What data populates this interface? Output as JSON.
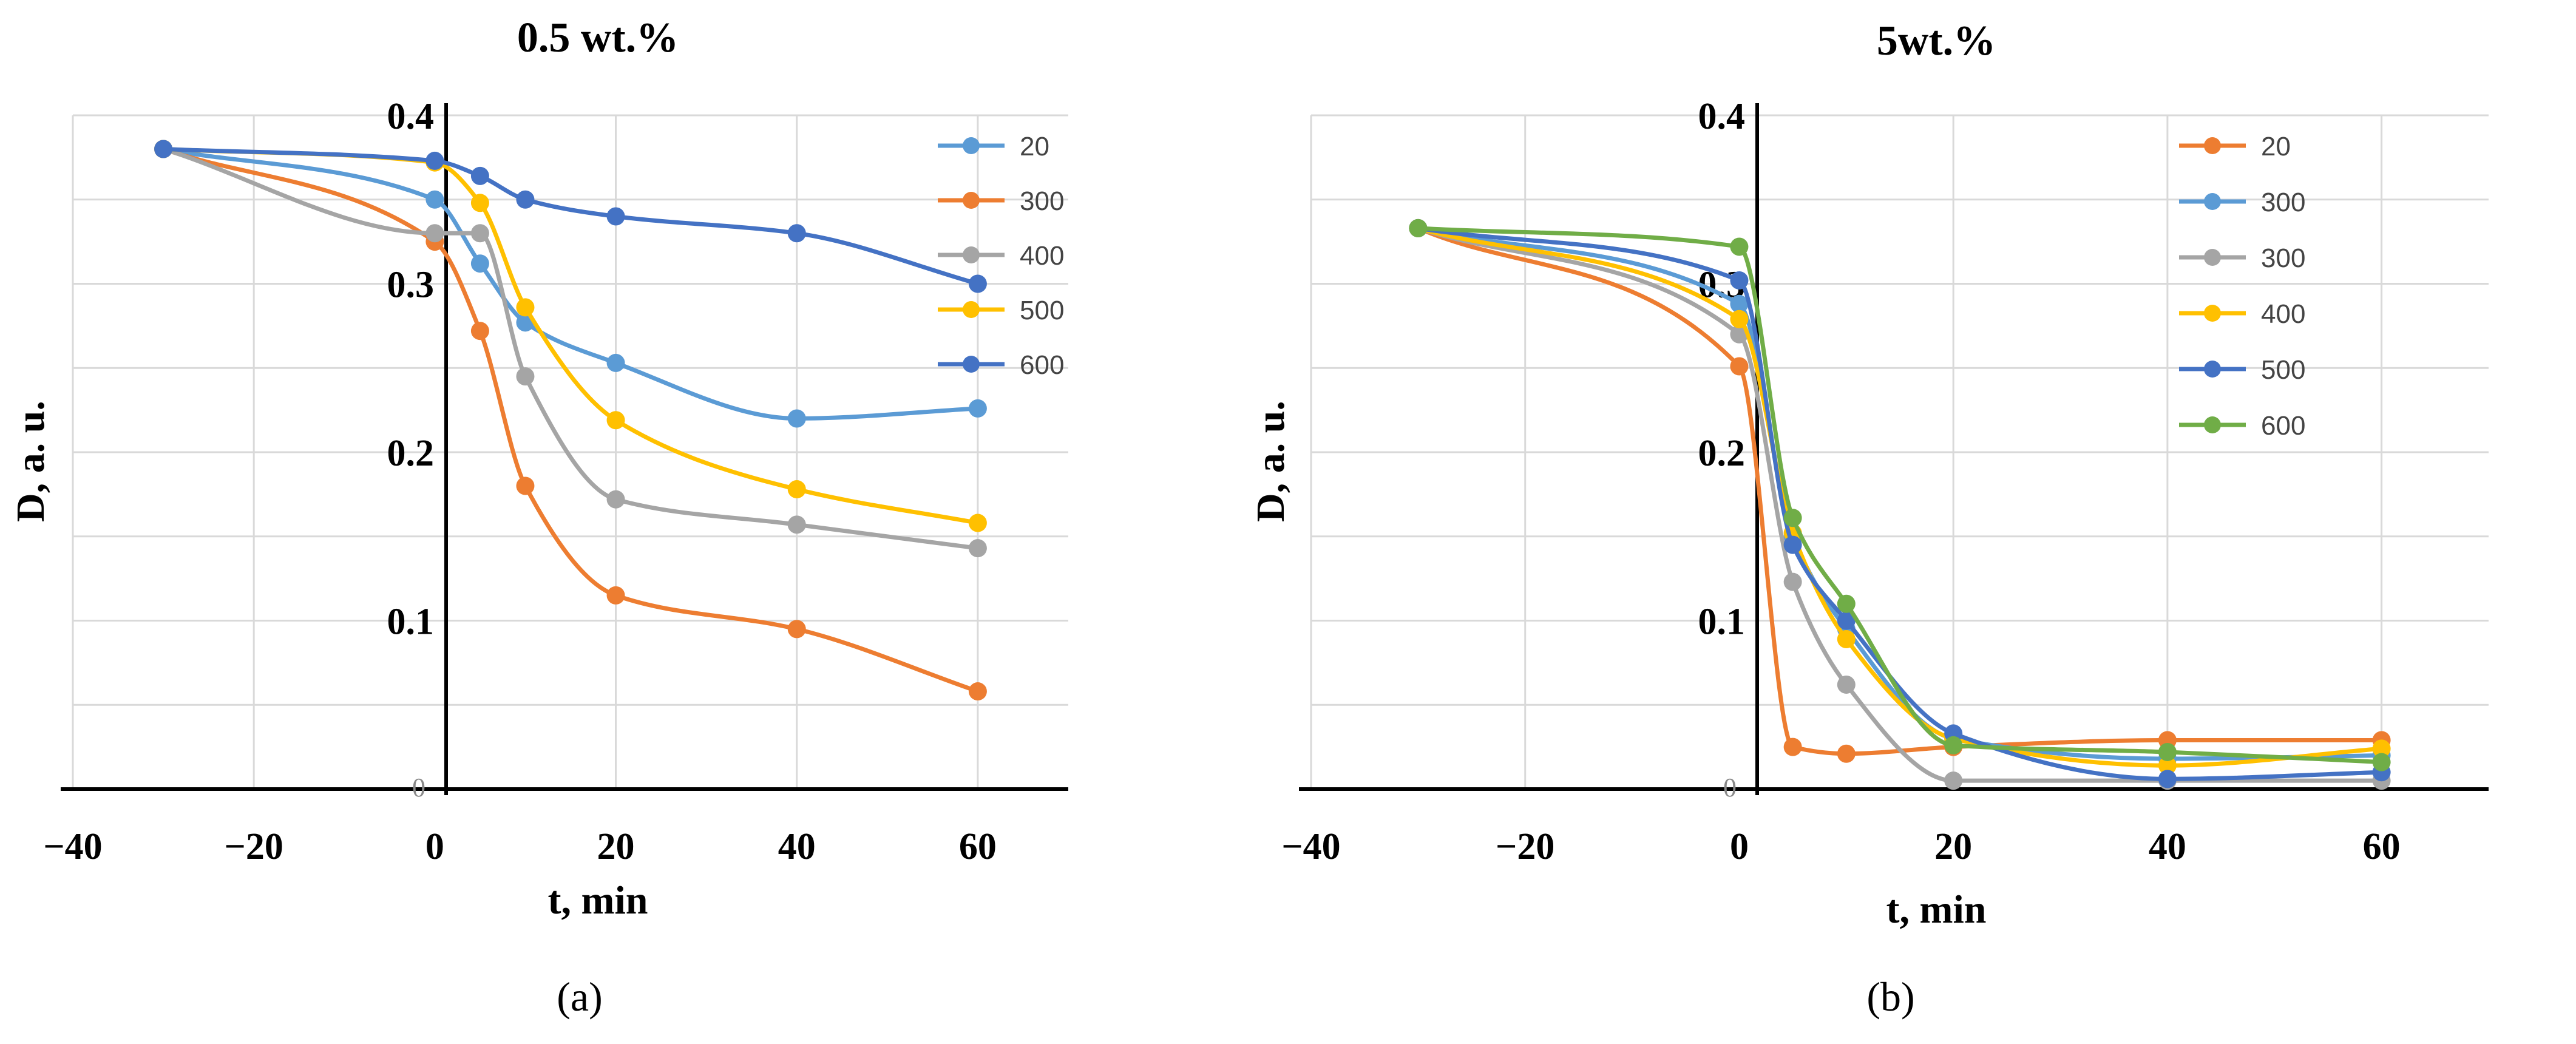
{
  "chart_data": [
    {
      "type": "line",
      "panel_label": "(a)",
      "title": "0.5 wt.%",
      "xlabel": "t, min",
      "ylabel": "D, a. u.",
      "xlim": [
        -40,
        70
      ],
      "ylim": [
        0,
        0.4
      ],
      "x_ticks": [
        -40,
        -20,
        0,
        20,
        40,
        60
      ],
      "y_ticks": [
        "0",
        "0.1",
        "0.2",
        "0.3",
        "0.4"
      ],
      "series": [
        {
          "name": "20",
          "color": "#5B9BD5",
          "x": [
            -30,
            0,
            5,
            10,
            20,
            40,
            60
          ],
          "values": [
            0.38,
            0.35,
            0.312,
            0.277,
            0.253,
            0.22,
            0.226
          ]
        },
        {
          "name": "300",
          "color": "#ED7D31",
          "x": [
            -30,
            0,
            5,
            10,
            20,
            40,
            60
          ],
          "values": [
            0.38,
            0.325,
            0.272,
            0.18,
            0.115,
            0.095,
            0.058
          ]
        },
        {
          "name": "400",
          "color": "#A5A5A5",
          "x": [
            -30,
            0,
            5,
            10,
            20,
            40,
            60
          ],
          "values": [
            0.38,
            0.33,
            0.33,
            0.245,
            0.172,
            0.157,
            0.143
          ]
        },
        {
          "name": "500",
          "color": "#FFC000",
          "x": [
            -30,
            0,
            5,
            10,
            20,
            40,
            60
          ],
          "values": [
            0.38,
            0.372,
            0.348,
            0.286,
            0.219,
            0.178,
            0.158
          ]
        },
        {
          "name": "600",
          "color": "#4472C4",
          "x": [
            -30,
            0,
            5,
            10,
            20,
            40,
            60
          ],
          "values": [
            0.38,
            0.373,
            0.364,
            0.35,
            0.34,
            0.33,
            0.3
          ]
        }
      ]
    },
    {
      "type": "line",
      "panel_label": "(b)",
      "title": "5wt.%",
      "xlabel": "t, min",
      "ylabel": "D, a. u.",
      "xlim": [
        -40,
        70
      ],
      "ylim": [
        0,
        0.4
      ],
      "x_ticks": [
        -40,
        -20,
        0,
        20,
        40,
        60
      ],
      "y_ticks": [
        "0",
        "0.1",
        "0.2",
        "0.3",
        "0.4"
      ],
      "series": [
        {
          "name": "20",
          "color": "#ED7D31",
          "x": [
            -30,
            0,
            5,
            10,
            20,
            40,
            60
          ],
          "values": [
            0.333,
            0.251,
            0.025,
            0.021,
            0.025,
            0.029,
            0.029
          ]
        },
        {
          "name": "300",
          "color": "#5B9BD5",
          "x": [
            -30,
            0,
            5,
            10,
            20,
            40,
            60
          ],
          "values": [
            0.333,
            0.288,
            0.15,
            0.095,
            0.03,
            0.018,
            0.02
          ]
        },
        {
          "name": "300",
          "color": "#A5A5A5",
          "x": [
            -30,
            0,
            5,
            10,
            20,
            40,
            60
          ],
          "values": [
            0.333,
            0.27,
            0.123,
            0.062,
            0.005,
            0.005,
            0.005
          ]
        },
        {
          "name": "400",
          "color": "#FFC000",
          "x": [
            -30,
            0,
            5,
            10,
            20,
            40,
            60
          ],
          "values": [
            0.333,
            0.279,
            0.152,
            0.089,
            0.03,
            0.014,
            0.024
          ]
        },
        {
          "name": "500",
          "color": "#4472C4",
          "x": [
            -30,
            0,
            5,
            10,
            20,
            40,
            60
          ],
          "values": [
            0.333,
            0.302,
            0.145,
            0.1,
            0.033,
            0.006,
            0.01
          ]
        },
        {
          "name": "600",
          "color": "#70AD47",
          "x": [
            -30,
            0,
            5,
            10,
            20,
            40,
            60
          ],
          "values": [
            0.333,
            0.322,
            0.161,
            0.11,
            0.026,
            0.022,
            0.016
          ]
        }
      ]
    }
  ]
}
